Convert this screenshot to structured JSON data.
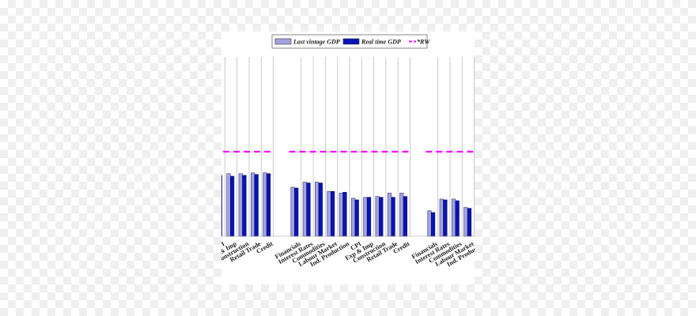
{
  "chart_data": {
    "type": "bar",
    "legend": {
      "placement": "top",
      "entries": [
        {
          "label": "Last vintage GDP",
          "color": "#a3a3e0",
          "kind": "bar"
        },
        {
          "label": "Real time GDP",
          "color": "#0a14b4",
          "kind": "bar"
        },
        {
          "label": "*RW",
          "color": "#ff00ff",
          "kind": "dashed-line"
        }
      ]
    },
    "rw_level": 1.0,
    "ylim": [
      0,
      1.5
    ],
    "groups": [
      {
        "categories": [
          "Exp & Imp",
          "Construction",
          "Retail Trade",
          "Credit"
        ],
        "leading_truncated": {
          "label": "PI",
          "last_vintage": null,
          "real_time": 0.72
        },
        "last_vintage": [
          0.74,
          0.74,
          0.75,
          0.75
        ],
        "real_time": [
          0.71,
          0.72,
          0.73,
          0.74
        ]
      },
      {
        "categories": [
          "Financials",
          "Interest Rates",
          "Commodities",
          "Labour Market",
          "Ind. Production",
          "CPI",
          "Exp & Imp",
          "Construction",
          "Retail Trade",
          "Credit"
        ],
        "last_vintage": [
          0.58,
          0.64,
          0.64,
          0.53,
          0.51,
          0.45,
          0.46,
          0.47,
          0.51,
          0.51
        ],
        "real_time": [
          0.57,
          0.63,
          0.63,
          0.53,
          0.52,
          0.43,
          0.46,
          0.46,
          0.46,
          0.47
        ]
      },
      {
        "categories": [
          "Financials",
          "Interest Rates",
          "Commodities",
          "Labour Market",
          "Ind. Production"
        ],
        "last_vintage": [
          0.3,
          0.44,
          0.44,
          0.34
        ],
        "real_time": [
          0.28,
          0.43,
          0.42,
          0.33
        ],
        "trailing_truncated": true
      }
    ],
    "grid": true
  }
}
